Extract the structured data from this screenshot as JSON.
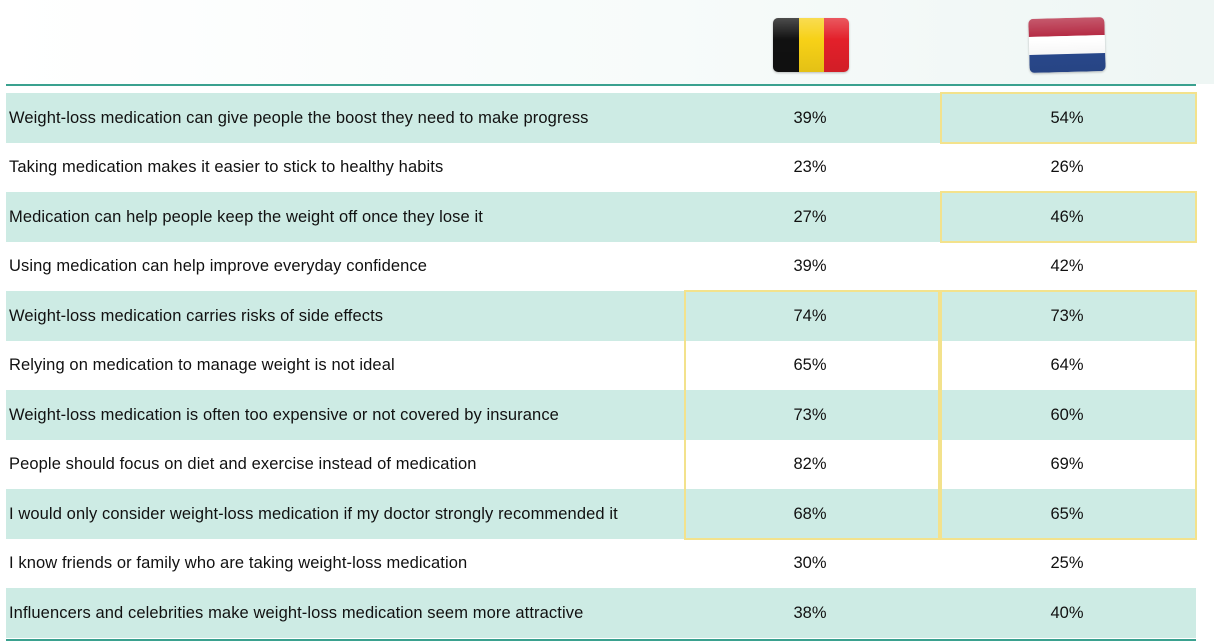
{
  "columns": [
    {
      "country": "Belgium",
      "icon": "belgium-flag-icon"
    },
    {
      "country": "Netherlands",
      "icon": "netherlands-flag-icon"
    }
  ],
  "colors": {
    "shaded_row": "#cdebe4",
    "rule": "#3aa18f",
    "highlight_border": "#f3e28c",
    "belgium": [
      "#111111",
      "#f7d117",
      "#e3202a"
    ],
    "netherlands": [
      "#b2223c",
      "#ffffff",
      "#2a4a8f"
    ]
  },
  "chart_data": {
    "type": "table",
    "columns": [
      "",
      "Belgium",
      "Netherlands"
    ],
    "rows": [
      {
        "statement": "Weight-loss medication can give people the boost they need to make progress",
        "be": "39%",
        "nl": "54%"
      },
      {
        "statement": "Taking medication makes it easier to stick to healthy habits",
        "be": "23%",
        "nl": "26%"
      },
      {
        "statement": "Medication can help people keep the weight off once they lose it",
        "be": "27%",
        "nl": "46%"
      },
      {
        "statement": "Using medication can help improve everyday confidence",
        "be": "39%",
        "nl": "42%"
      },
      {
        "statement": "Weight-loss medication carries risks of side effects",
        "be": "74%",
        "nl": "73%"
      },
      {
        "statement": "Relying on medication to manage weight is not ideal",
        "be": "65%",
        "nl": "64%"
      },
      {
        "statement": "Weight-loss medication is often too expensive or not covered by insurance",
        "be": "73%",
        "nl": "60%"
      },
      {
        "statement": "People should focus on diet and exercise instead of medication",
        "be": "82%",
        "nl": "69%"
      },
      {
        "statement": "I would only consider weight-loss medication if my doctor strongly recommended it",
        "be": "68%",
        "nl": "65%"
      },
      {
        "statement": "I know friends or family who are taking weight-loss medication",
        "be": "30%",
        "nl": "25%"
      },
      {
        "statement": "Influencers and celebrities make weight-loss medication seem more attractive",
        "be": "38%",
        "nl": "40%"
      }
    ],
    "highlighted_cells": {
      "Belgium": [
        4,
        5,
        6,
        7,
        8
      ],
      "Netherlands": [
        0,
        2,
        4,
        5,
        6,
        7,
        8
      ]
    }
  }
}
